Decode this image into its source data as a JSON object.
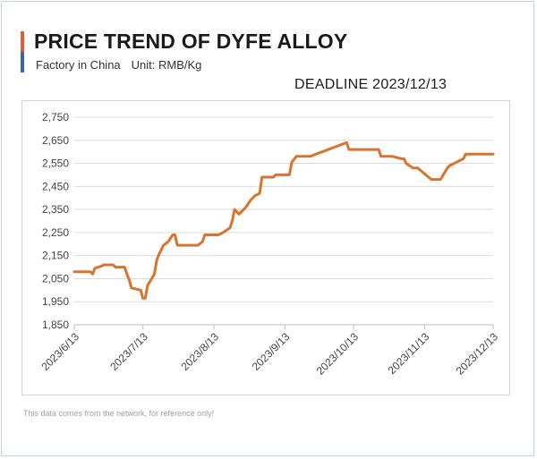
{
  "header": {
    "title": "PRICE TREND OF DYFE ALLOY",
    "subtitle_source": "Factory in China",
    "subtitle_unit": "Unit: RMB/Kg",
    "deadline": "DEADLINE 2023/12/13"
  },
  "footer": {
    "note": "This data comes from the network, for reference only!"
  },
  "colors": {
    "line": "#d9732e",
    "grid": "#dcdcdc",
    "accent_red": "#e35a3c",
    "accent_blue": "#3a66a8"
  },
  "chart_data": {
    "type": "line",
    "title": "PRICE TREND OF DYFE ALLOY",
    "xlabel": "",
    "ylabel": "",
    "ylim": [
      1850,
      2750
    ],
    "yticks": [
      1850,
      1950,
      2050,
      2150,
      2250,
      2350,
      2450,
      2550,
      2650,
      2750
    ],
    "ytick_labels": [
      "1,850",
      "1,950",
      "2,050",
      "2,150",
      "2,250",
      "2,350",
      "2,450",
      "2,550",
      "2,650",
      "2,750"
    ],
    "xlim": [
      "2023-06-13",
      "2023-12-13"
    ],
    "xticks": [
      "2023-06-13",
      "2023-07-13",
      "2023-08-13",
      "2023-09-13",
      "2023-10-13",
      "2023-11-13",
      "2023-12-13"
    ],
    "xtick_labels": [
      "2023/6/13",
      "2023/7/13",
      "2023/8/13",
      "2023/9/13",
      "2023/10/13",
      "2023/11/13",
      "2023/12/13"
    ],
    "grid": true,
    "series": [
      {
        "x": [
          "2023-06-13",
          "2023-06-20",
          "2023-06-21",
          "2023-06-22",
          "2023-06-25",
          "2023-06-26",
          "2023-06-30",
          "2023-07-01",
          "2023-07-05",
          "2023-07-06",
          "2023-07-07",
          "2023-07-08",
          "2023-07-12",
          "2023-07-13",
          "2023-07-14",
          "2023-07-15",
          "2023-07-18",
          "2023-07-19",
          "2023-07-20",
          "2023-07-22",
          "2023-07-24",
          "2023-07-26",
          "2023-07-27",
          "2023-07-28",
          "2023-08-06",
          "2023-08-08",
          "2023-08-09",
          "2023-08-15",
          "2023-08-17",
          "2023-08-20",
          "2023-08-21",
          "2023-08-22",
          "2023-08-24",
          "2023-08-26",
          "2023-08-27",
          "2023-08-29",
          "2023-08-31",
          "2023-09-02",
          "2023-09-03",
          "2023-09-08",
          "2023-09-09",
          "2023-09-15",
          "2023-09-16",
          "2023-09-18",
          "2023-09-24",
          "2023-10-10",
          "2023-10-11",
          "2023-10-24",
          "2023-10-25",
          "2023-10-30",
          "2023-11-03",
          "2023-11-04",
          "2023-11-05",
          "2023-11-08",
          "2023-11-10",
          "2023-11-16",
          "2023-11-17",
          "2023-11-20",
          "2023-11-23",
          "2023-11-24",
          "2023-11-30",
          "2023-12-01",
          "2023-12-13"
        ],
        "y": [
          2080,
          2080,
          2070,
          2095,
          2105,
          2110,
          2110,
          2100,
          2100,
          2070,
          2045,
          2010,
          2000,
          1965,
          1965,
          2020,
          2070,
          2130,
          2155,
          2195,
          2210,
          2240,
          2240,
          2195,
          2195,
          2210,
          2240,
          2240,
          2250,
          2270,
          2300,
          2350,
          2330,
          2350,
          2360,
          2390,
          2410,
          2420,
          2490,
          2490,
          2500,
          2500,
          2555,
          2580,
          2580,
          2640,
          2610,
          2610,
          2580,
          2580,
          2570,
          2570,
          2550,
          2530,
          2530,
          2480,
          2480,
          2480,
          2530,
          2540,
          2570,
          2590,
          2590
        ]
      }
    ]
  }
}
